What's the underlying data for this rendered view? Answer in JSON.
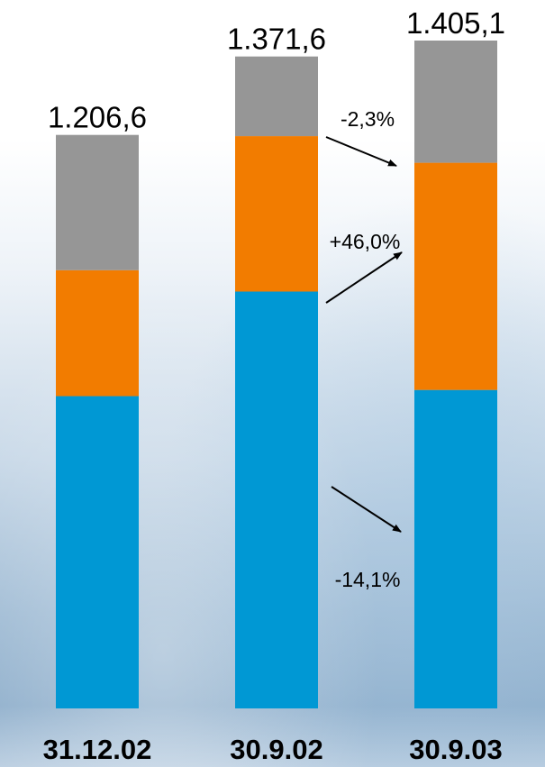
{
  "chart_data": {
    "type": "bar",
    "stacked": true,
    "categories": [
      "31.12.02",
      "30.9.02",
      "30.9.03"
    ],
    "totals": [
      "1.206,6",
      "1.371,6",
      "1.405,1"
    ],
    "total_values": [
      1206.6,
      1371.6,
      1405.1
    ],
    "series": [
      {
        "values": [
          657,
          877,
          670
        ],
        "color": "#0098d4"
      },
      {
        "values": [
          265,
          327,
          478
        ],
        "color": "#f27c00"
      },
      {
        "values": [
          284.6,
          167.6,
          257.1
        ],
        "color": "#969696"
      }
    ],
    "annotations": [
      {
        "text": "-2,3%",
        "series": 2
      },
      {
        "text": "+46,0%",
        "series": 1
      },
      {
        "text": "-14,1%",
        "series": 0
      }
    ],
    "ylim": [
      0,
      1405.1
    ],
    "grid": false,
    "legend": "none"
  }
}
